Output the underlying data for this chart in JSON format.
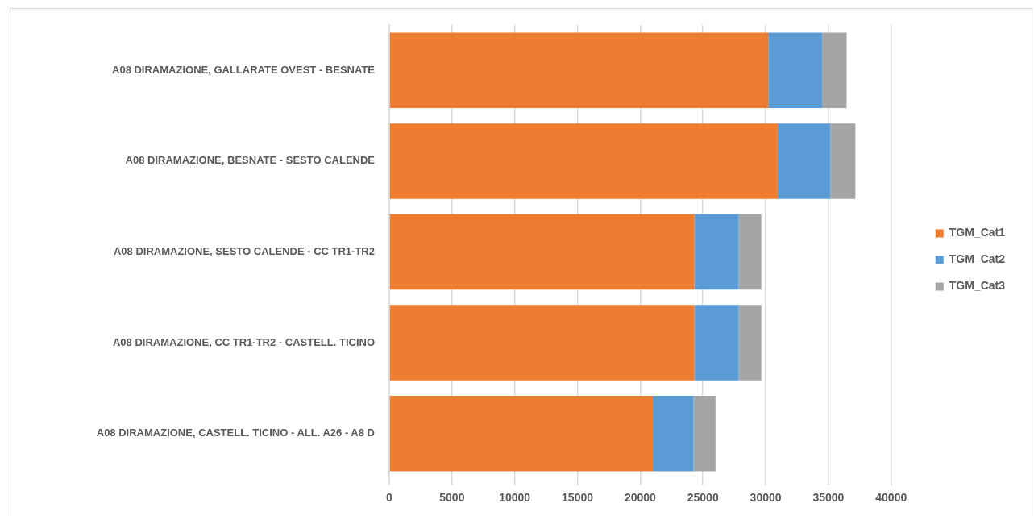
{
  "chart_data": {
    "type": "bar",
    "orientation": "horizontal",
    "stacked": true,
    "categories": [
      "A08 DIRAMAZIONE, GALLARATE OVEST - BESNATE",
      "A08 DIRAMAZIONE, BESNATE - SESTO CALENDE",
      "A08 DIRAMAZIONE, SESTO CALENDE - CC TR1-TR2",
      "A08 DIRAMAZIONE, CC TR1-TR2 - CASTELL. TICINO",
      "A08 DIRAMAZIONE, CASTELL. TICINO - ALL. A26 - A8 D"
    ],
    "series": [
      {
        "name": "TGM_Cat1",
        "color": "#ed7d31",
        "values": [
          30200,
          30950,
          24300,
          24300,
          21000
        ]
      },
      {
        "name": "TGM_Cat2",
        "color": "#5b9bd5",
        "values": [
          4300,
          4200,
          3550,
          3550,
          3250
        ]
      },
      {
        "name": "TGM_Cat3",
        "color": "#a5a5a5",
        "values": [
          1950,
          2000,
          1800,
          1800,
          1750
        ]
      }
    ],
    "xlim": [
      0,
      40000
    ],
    "xticks": [
      0,
      5000,
      10000,
      15000,
      20000,
      25000,
      30000,
      35000,
      40000
    ],
    "grid": "x",
    "legend": "right"
  }
}
